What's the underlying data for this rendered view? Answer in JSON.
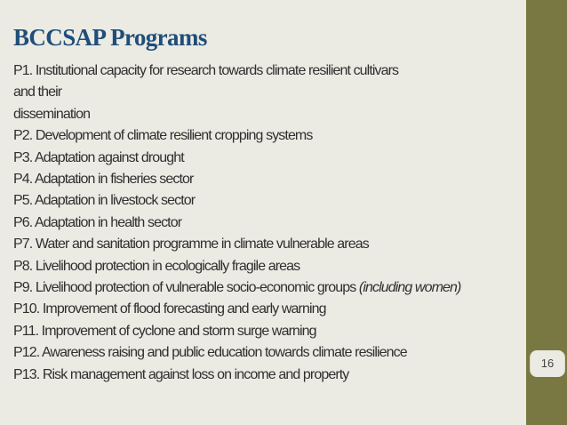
{
  "slide": {
    "title": "BCCSAP Programs",
    "page_number": "16",
    "items": [
      {
        "text": "P1. Institutional capacity for research towards climate resilient cultivars"
      },
      {
        "text": "and their"
      },
      {
        "text": "dissemination"
      },
      {
        "text": "P2. Development of climate resilient cropping systems"
      },
      {
        "text": "P3. Adaptation against drought"
      },
      {
        "text": "P4. Adaptation in fisheries sector"
      },
      {
        "text": "P5. Adaptation in livestock sector"
      },
      {
        "text": "P6. Adaptation in health sector"
      },
      {
        "text": "P7. Water and sanitation programme in climate vulnerable areas"
      },
      {
        "text": "P8. Livelihood protection in ecologically fragile areas"
      },
      {
        "text": "P9. Livelihood protection of vulnerable socio-economic groups ",
        "note": "(including women)"
      },
      {
        "text": "P10. Improvement of flood forecasting and early warning"
      },
      {
        "text": "P11. Improvement of cyclone and storm surge warning"
      },
      {
        "text": "P12. Awareness raising and public education towards climate resilience"
      },
      {
        "text": "P13. Risk management against loss on income and property"
      }
    ]
  },
  "colors": {
    "background": "#ebebe4",
    "side_band": "#7a7842",
    "title": "#1f4e79",
    "body_text": "#2f2f2f"
  }
}
